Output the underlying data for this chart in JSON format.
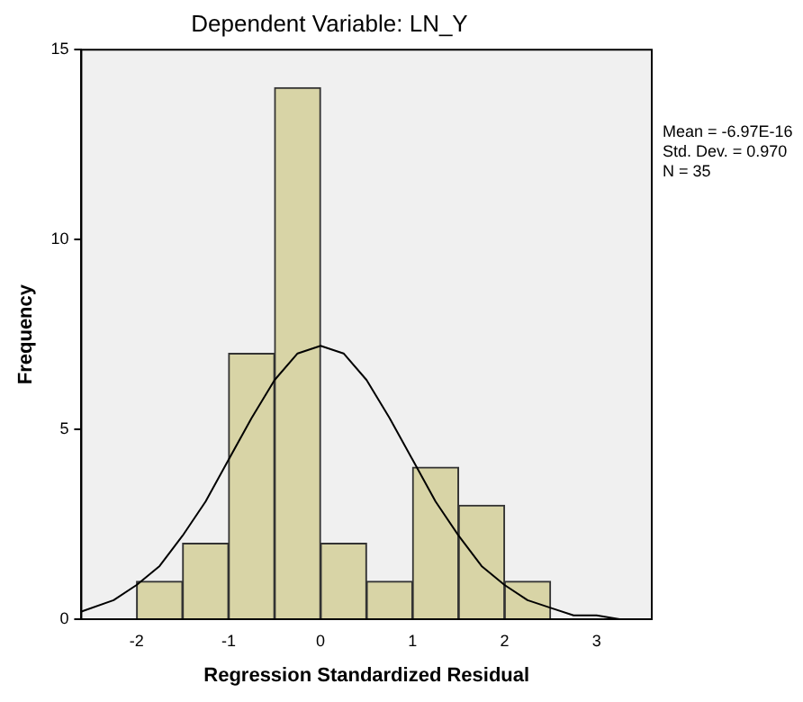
{
  "chart_data": {
    "type": "histogram",
    "title": "Dependent Variable: LN_Y",
    "xlabel": "Regression Standardized Residual",
    "ylabel": "Frequency",
    "bins": [
      -2,
      -1.5,
      -1,
      -0.5,
      0,
      0.5,
      1,
      1.5,
      2,
      2.5
    ],
    "values": [
      1,
      2,
      7,
      14,
      2,
      1,
      4,
      3,
      1
    ],
    "color": "#d8d4a6",
    "series": [
      {
        "type": "line",
        "color": "#000000",
        "x": [
          -2.6,
          -2.25,
          -2,
          -1.75,
          -1.5,
          -1.25,
          -1,
          -0.75,
          -0.5,
          -0.25,
          0,
          0.25,
          0.5,
          0.75,
          1,
          1.25,
          1.5,
          1.75,
          2,
          2.25,
          2.5,
          2.75,
          3,
          3.25,
          3.6
        ],
        "values": [
          0.2,
          0.5,
          0.9,
          1.4,
          2.2,
          3.1,
          4.2,
          5.3,
          6.3,
          7,
          7.2,
          7,
          6.3,
          5.3,
          4.2,
          3.1,
          2.2,
          1.4,
          0.9,
          0.5,
          0.3,
          0.1,
          0.1,
          0,
          0
        ]
      }
    ],
    "xlim": [
      -2.6,
      3.6
    ],
    "ylim": [
      0,
      15
    ],
    "xticks": [
      -2,
      -1,
      0,
      1,
      2,
      3
    ],
    "yticks": [
      0,
      5,
      10,
      15
    ],
    "annotations": [
      "Mean = -6.97E-16",
      "Std. Dev. = 0.970",
      "N = 35"
    ],
    "grid": false,
    "legend": false,
    "marker": "none",
    "line_style": "solid"
  }
}
